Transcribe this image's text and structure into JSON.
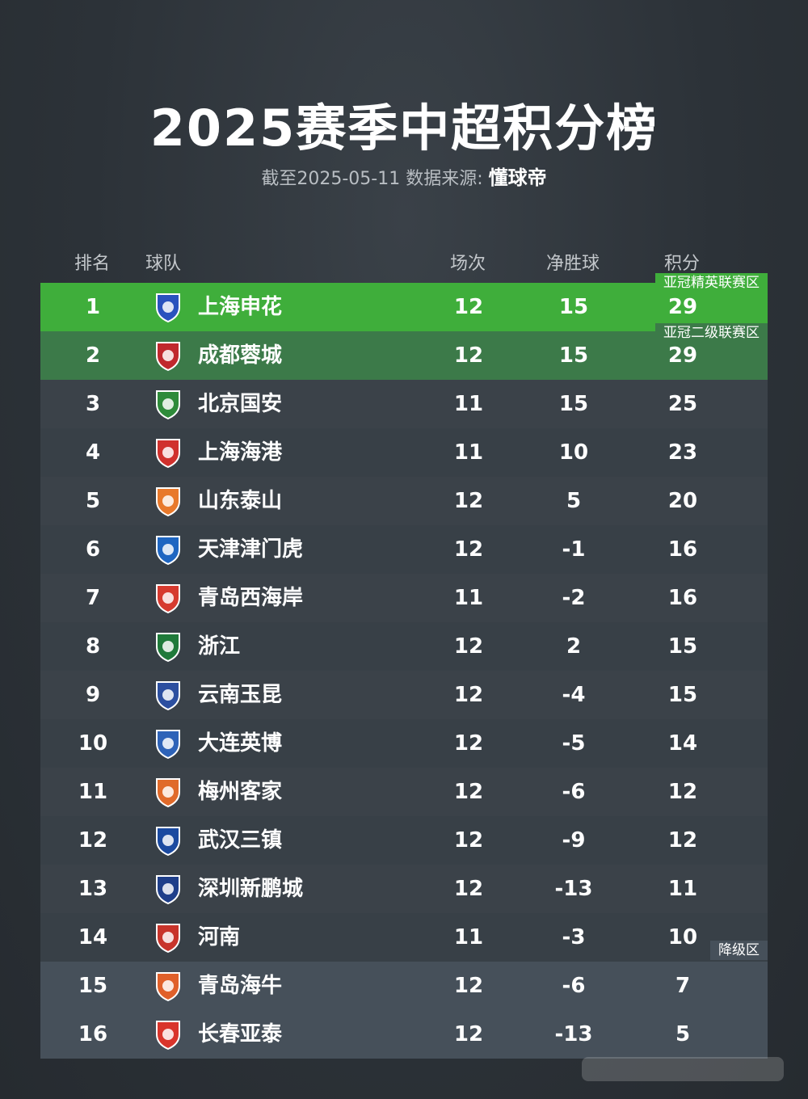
{
  "title": "2025赛季中超积分榜",
  "subtitle": {
    "date_text": "截至2025-05-11 数据来源:",
    "source": "懂球帝"
  },
  "header": {
    "rank": "排名",
    "team": "球队",
    "played": "场次",
    "goal_diff": "净胜球",
    "points": "积分"
  },
  "zones": {
    "acl_elite": "亚冠精英联赛区",
    "acl_two": "亚冠二级联赛区",
    "relegation": "降级区"
  },
  "colors": {
    "acl_elite": "#3fae3b",
    "acl_two": "#3c7a49",
    "relegation": "#46505a"
  },
  "rows": [
    {
      "rank": "1",
      "team": "上海申花",
      "played": "12",
      "gd": "15",
      "pts": "29",
      "logo_icon": "shanghai-shenhua-logo-icon",
      "logo_color": "#2a52be"
    },
    {
      "rank": "2",
      "team": "成都蓉城",
      "played": "12",
      "gd": "15",
      "pts": "29",
      "logo_icon": "chengdu-rongcheng-logo-icon",
      "logo_color": "#c0282d"
    },
    {
      "rank": "3",
      "team": "北京国安",
      "played": "11",
      "gd": "15",
      "pts": "25",
      "logo_icon": "beijing-guoan-logo-icon",
      "logo_color": "#2e8b3a"
    },
    {
      "rank": "4",
      "team": "上海海港",
      "played": "11",
      "gd": "10",
      "pts": "23",
      "logo_icon": "shanghai-port-logo-icon",
      "logo_color": "#d0312d"
    },
    {
      "rank": "5",
      "team": "山东泰山",
      "played": "12",
      "gd": "5",
      "pts": "20",
      "logo_icon": "shandong-taishan-logo-icon",
      "logo_color": "#e8792b"
    },
    {
      "rank": "6",
      "team": "天津津门虎",
      "played": "12",
      "gd": "-1",
      "pts": "16",
      "logo_icon": "tianjin-jinmen-tiger-logo-icon",
      "logo_color": "#1f66c1"
    },
    {
      "rank": "7",
      "team": "青岛西海岸",
      "played": "11",
      "gd": "-2",
      "pts": "16",
      "logo_icon": "qingdao-west-coast-logo-icon",
      "logo_color": "#d63a2f"
    },
    {
      "rank": "8",
      "team": "浙江",
      "played": "12",
      "gd": "2",
      "pts": "15",
      "logo_icon": "zhejiang-logo-icon",
      "logo_color": "#1f7a3a"
    },
    {
      "rank": "9",
      "team": "云南玉昆",
      "played": "12",
      "gd": "-4",
      "pts": "15",
      "logo_icon": "yunnan-yukun-logo-icon",
      "logo_color": "#2c4fa0"
    },
    {
      "rank": "10",
      "team": "大连英博",
      "played": "12",
      "gd": "-5",
      "pts": "14",
      "logo_icon": "dalian-yingbo-logo-icon",
      "logo_color": "#2e63b8"
    },
    {
      "rank": "11",
      "team": "梅州客家",
      "played": "12",
      "gd": "-6",
      "pts": "12",
      "logo_icon": "meizhou-hakka-logo-icon",
      "logo_color": "#e06a2a"
    },
    {
      "rank": "12",
      "team": "武汉三镇",
      "played": "12",
      "gd": "-9",
      "pts": "12",
      "logo_icon": "wuhan-three-towns-logo-icon",
      "logo_color": "#1b4aa0"
    },
    {
      "rank": "13",
      "team": "深圳新鹏城",
      "played": "12",
      "gd": "-13",
      "pts": "11",
      "logo_icon": "shenzhen-peng-city-logo-icon",
      "logo_color": "#1f3f8a"
    },
    {
      "rank": "14",
      "team": "河南",
      "played": "11",
      "gd": "-3",
      "pts": "10",
      "logo_icon": "henan-logo-icon",
      "logo_color": "#c8342b"
    },
    {
      "rank": "15",
      "team": "青岛海牛",
      "played": "12",
      "gd": "-6",
      "pts": "7",
      "logo_icon": "qingdao-hainiu-logo-icon",
      "logo_color": "#e0602a"
    },
    {
      "rank": "16",
      "team": "长春亚泰",
      "played": "12",
      "gd": "-13",
      "pts": "5",
      "logo_icon": "changchun-yatai-logo-icon",
      "logo_color": "#d9342b"
    }
  ]
}
